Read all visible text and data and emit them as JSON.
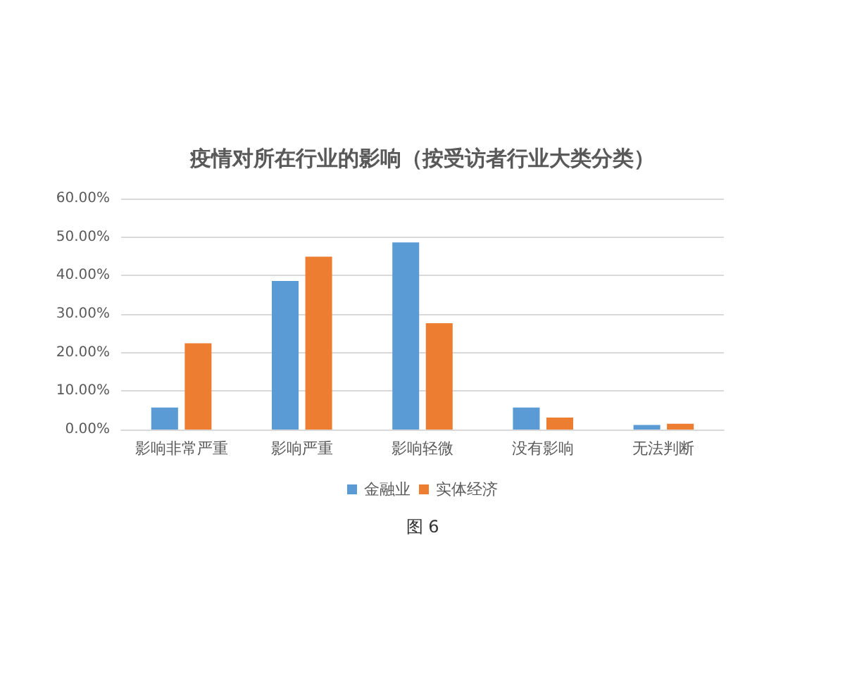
{
  "chart_data": {
    "type": "bar",
    "title": "疫情对所在行业的影响（按受访者行业大类分类）",
    "categories": [
      "影响非常严重",
      "影响严重",
      "影响轻微",
      "没有影响",
      "无法判断"
    ],
    "series": [
      {
        "name": "金融业",
        "color": "#5b9bd5",
        "values": [
          5.7,
          38.6,
          48.6,
          5.7,
          1.2
        ]
      },
      {
        "name": "实体经济",
        "color": "#ed7d31",
        "values": [
          22.4,
          44.9,
          27.6,
          3.1,
          1.5
        ]
      }
    ],
    "ylim": [
      0,
      60
    ],
    "yticks": [
      {
        "value": 0,
        "label": "0.00%"
      },
      {
        "value": 10,
        "label": "10.00%"
      },
      {
        "value": 20,
        "label": "20.00%"
      },
      {
        "value": 30,
        "label": "30.00%"
      },
      {
        "value": 40,
        "label": "40.00%"
      },
      {
        "value": 50,
        "label": "50.00%"
      },
      {
        "value": 60,
        "label": "60.00%"
      }
    ],
    "grid": "y",
    "legend": "bottom",
    "annotations": [
      "图 6"
    ]
  }
}
